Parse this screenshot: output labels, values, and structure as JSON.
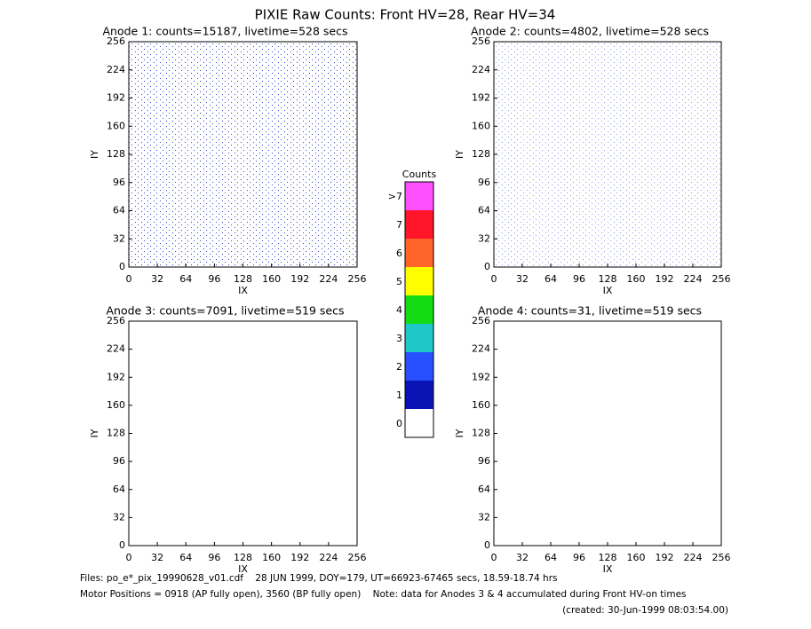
{
  "title": "PIXIE Raw Counts:  Front HV=28, Rear HV=34",
  "chart_data": [
    {
      "type": "image",
      "title": "Anode 1: counts=15187, livetime=528 secs",
      "xlabel": "IX",
      "ylabel": "IY",
      "xlim": [
        0,
        256
      ],
      "ylim": [
        0,
        256
      ],
      "xticks": [
        0,
        32,
        64,
        96,
        128,
        160,
        192,
        224,
        256
      ],
      "yticks": [
        0,
        32,
        64,
        96,
        128,
        160,
        192,
        224,
        256
      ]
    },
    {
      "type": "image",
      "title": "Anode 2: counts=4802, livetime=528 secs",
      "xlabel": "IX",
      "ylabel": "IY",
      "xlim": [
        0,
        256
      ],
      "ylim": [
        0,
        256
      ],
      "xticks": [
        0,
        32,
        64,
        96,
        128,
        160,
        192,
        224,
        256
      ],
      "yticks": [
        0,
        32,
        64,
        96,
        128,
        160,
        192,
        224,
        256
      ]
    },
    {
      "type": "image",
      "title": "Anode 3: counts=7091, livetime=519 secs",
      "xlabel": "IX",
      "ylabel": "IY",
      "xlim": [
        0,
        256
      ],
      "ylim": [
        0,
        256
      ],
      "xticks": [
        0,
        32,
        64,
        96,
        128,
        160,
        192,
        224,
        256
      ],
      "yticks": [
        0,
        32,
        64,
        96,
        128,
        160,
        192,
        224,
        256
      ]
    },
    {
      "type": "image",
      "title": "Anode 4: counts=31, livetime=519 secs",
      "xlabel": "IX",
      "ylabel": "IY",
      "xlim": [
        0,
        256
      ],
      "ylim": [
        0,
        256
      ],
      "xticks": [
        0,
        32,
        64,
        96,
        128,
        160,
        192,
        224,
        256
      ],
      "yticks": [
        0,
        32,
        64,
        96,
        128,
        160,
        192,
        224,
        256
      ]
    }
  ],
  "colorbar": {
    "title": "Counts",
    "labels": [
      "0",
      "1",
      "2",
      "3",
      "4",
      "5",
      "6",
      "7",
      ">7"
    ],
    "colors": [
      "#ffffff",
      "#0a14b4",
      "#2850ff",
      "#1ec8c8",
      "#14dc14",
      "#ffff00",
      "#ff6428",
      "#ff1428",
      "#ff50ff"
    ]
  },
  "footer": [
    "Files: po_e*_pix_19990628_v01.cdf    28 JUN 1999, DOY=179, UT=66923-67465 secs, 18.59-18.74 hrs",
    "Motor Positions = 0918 (AP fully open), 3560 (BP fully open)    Note: data for Anodes 3 & 4 accumulated during Front HV-on times",
    "(created: 30-Jun-1999 08:03:54.00)"
  ]
}
